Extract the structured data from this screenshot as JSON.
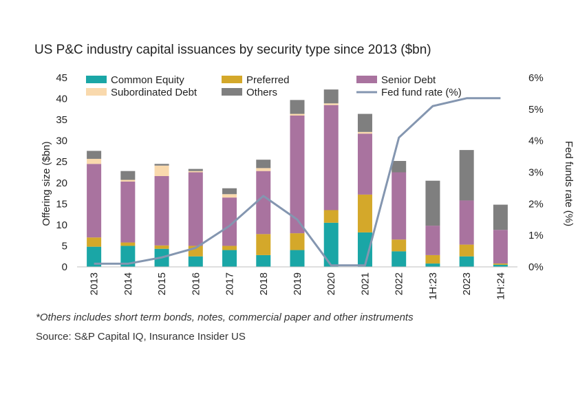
{
  "chart_data": {
    "type": "bar",
    "stacked": true,
    "title": "US P&C industry capital issuances by security type since 2013 ($bn)",
    "categories": [
      "2013",
      "2014",
      "2015",
      "2016",
      "2017",
      "2018",
      "2019",
      "2020",
      "2021",
      "2022",
      "1H:23",
      "2023",
      "1H:24"
    ],
    "ylabel": "Offering size ($bn)",
    "y2label": "Fed funds rate (%)",
    "ylim": [
      0,
      45
    ],
    "yticks": [
      0,
      5,
      10,
      15,
      20,
      25,
      30,
      35,
      40,
      45
    ],
    "y2lim": [
      0,
      6
    ],
    "y2ticks": [
      "0%",
      "1%",
      "2%",
      "3%",
      "4%",
      "5%",
      "6%"
    ],
    "legend_position": "top",
    "series": [
      {
        "name": "Common Equity",
        "color": "#1aa6a6",
        "values": [
          4.8,
          5.0,
          4.3,
          2.5,
          4.0,
          2.8,
          4.0,
          10.5,
          8.2,
          3.7,
          0.8,
          2.5,
          0.5
        ]
      },
      {
        "name": "Preferred",
        "color": "#d4a82a",
        "values": [
          2.2,
          0.8,
          0.8,
          2.5,
          1.0,
          5.0,
          4.0,
          3.0,
          9.0,
          2.8,
          2.0,
          2.8,
          0.3
        ]
      },
      {
        "name": "Senior Debt",
        "color": "#a9739f",
        "values": [
          17.5,
          14.5,
          16.5,
          17.5,
          11.5,
          15.0,
          28.0,
          25.0,
          14.5,
          16.0,
          7.0,
          10.5,
          8.0
        ]
      },
      {
        "name": "Subordinated Debt",
        "color": "#f9d9ad",
        "values": [
          1.2,
          0.4,
          2.5,
          0.3,
          0.8,
          0.7,
          0.4,
          0.4,
          0.4,
          0,
          0,
          0,
          0
        ]
      },
      {
        "name": "Others",
        "color": "#7f7f7f",
        "values": [
          1.9,
          2.1,
          0.4,
          0.5,
          1.4,
          2.0,
          3.3,
          3.3,
          4.3,
          2.7,
          10.7,
          12.0,
          6.0
        ]
      }
    ],
    "line": {
      "name": "Fed fund rate (%)",
      "color": "#8496b0",
      "axis": "right",
      "values": [
        0.1,
        0.1,
        0.3,
        0.6,
        1.3,
        2.25,
        1.5,
        0.05,
        0.05,
        4.1,
        5.1,
        5.35,
        5.35
      ]
    }
  },
  "footnote": "*Others includes short term bonds, notes, commercial paper and other instruments",
  "source": "Source: S&P Capital IQ, Insurance Insider US"
}
